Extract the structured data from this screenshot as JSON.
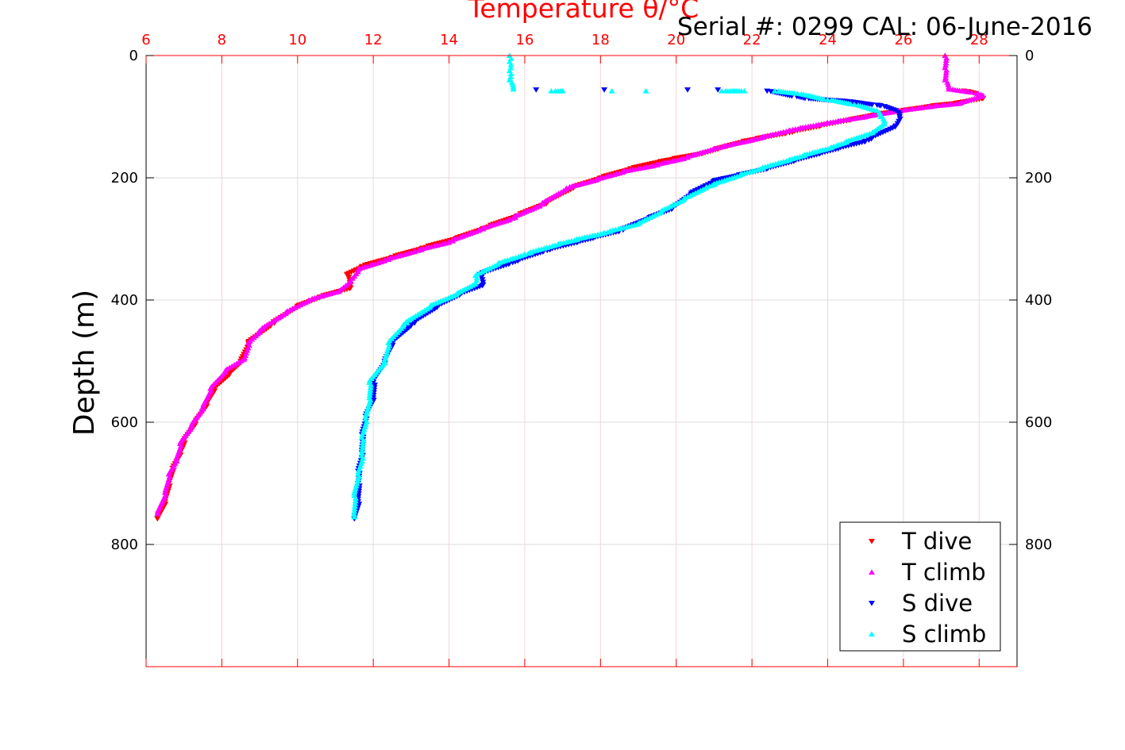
{
  "chart_data": {
    "type": "scatter",
    "title": "Serial #: 0299 CAL: 06-June-2016",
    "xlabel": "Temperature θ/°C",
    "ylabel": "Depth (m)",
    "xlim": [
      6,
      29
    ],
    "ylim": [
      0,
      1000
    ],
    "y_reversed": true,
    "grid": true,
    "x_axis_position": "top",
    "x_ticks": [
      6,
      8,
      10,
      12,
      14,
      16,
      18,
      20,
      22,
      24,
      26,
      28
    ],
    "y_ticks": [
      0,
      200,
      400,
      600,
      800
    ],
    "legend_position": "bottom-right",
    "colors": {
      "axis_top": "#ff0000",
      "axis_y": "#000000"
    },
    "series": [
      {
        "name": "T dive",
        "color": "#ff0000",
        "marker": "triangle-down",
        "points": [
          [
            27.6,
            58
          ],
          [
            27.9,
            62
          ],
          [
            28.0,
            66
          ],
          [
            28.1,
            70
          ],
          [
            27.4,
            78
          ],
          [
            26.8,
            82
          ],
          [
            26.0,
            90
          ],
          [
            25.3,
            96
          ],
          [
            24.6,
            105
          ],
          [
            23.8,
            115
          ],
          [
            22.9,
            127
          ],
          [
            21.8,
            140
          ],
          [
            20.7,
            160
          ],
          [
            19.6,
            173
          ],
          [
            18.8,
            185
          ],
          [
            18.0,
            200
          ],
          [
            17.3,
            215
          ],
          [
            16.6,
            240
          ],
          [
            15.8,
            262
          ],
          [
            14.9,
            283
          ],
          [
            14.2,
            299
          ],
          [
            13.3,
            315
          ],
          [
            12.5,
            330
          ],
          [
            11.7,
            345
          ],
          [
            11.3,
            358
          ],
          [
            11.4,
            380
          ],
          [
            10.6,
            395
          ],
          [
            10.0,
            410
          ],
          [
            9.3,
            440
          ],
          [
            8.7,
            470
          ],
          [
            8.5,
            500
          ],
          [
            8.2,
            520
          ],
          [
            7.8,
            545
          ],
          [
            7.6,
            570
          ],
          [
            7.3,
            600
          ],
          [
            7.0,
            630
          ],
          [
            6.9,
            650
          ],
          [
            6.7,
            675
          ],
          [
            6.6,
            700
          ],
          [
            6.5,
            730
          ],
          [
            6.3,
            758
          ]
        ]
      },
      {
        "name": "T climb",
        "color": "#ff00ff",
        "marker": "triangle-up",
        "points": [
          [
            27.1,
            0
          ],
          [
            27.1,
            20
          ],
          [
            27.1,
            40
          ],
          [
            27.2,
            55
          ],
          [
            27.8,
            60
          ],
          [
            28.1,
            65
          ],
          [
            27.5,
            78
          ],
          [
            26.5,
            85
          ],
          [
            25.7,
            92
          ],
          [
            25.0,
            100
          ],
          [
            24.0,
            110
          ],
          [
            23.0,
            122
          ],
          [
            22.0,
            138
          ],
          [
            21.0,
            152
          ],
          [
            20.2,
            168
          ],
          [
            19.4,
            180
          ],
          [
            18.6,
            190
          ],
          [
            17.9,
            203
          ],
          [
            17.1,
            217
          ],
          [
            16.4,
            245
          ],
          [
            15.6,
            268
          ],
          [
            14.8,
            285
          ],
          [
            14.0,
            305
          ],
          [
            13.1,
            320
          ],
          [
            12.3,
            335
          ],
          [
            11.6,
            350
          ],
          [
            11.4,
            368
          ],
          [
            11.1,
            385
          ],
          [
            10.3,
            400
          ],
          [
            9.7,
            420
          ],
          [
            9.0,
            450
          ],
          [
            8.7,
            470
          ],
          [
            8.6,
            495
          ],
          [
            8.1,
            515
          ],
          [
            7.7,
            545
          ],
          [
            7.5,
            575
          ],
          [
            7.2,
            605
          ],
          [
            6.9,
            635
          ],
          [
            6.8,
            660
          ],
          [
            6.6,
            685
          ],
          [
            6.5,
            715
          ],
          [
            6.3,
            750
          ]
        ]
      },
      {
        "name": "S dive",
        "color": "#0000ff",
        "marker": "triangle-down",
        "points": [
          [
            16.3,
            56
          ],
          [
            18.1,
            56
          ],
          [
            20.3,
            56
          ],
          [
            21.1,
            56
          ],
          [
            22.4,
            58
          ],
          [
            23.4,
            70
          ],
          [
            24.5,
            75
          ],
          [
            25.4,
            82
          ],
          [
            25.8,
            90
          ],
          [
            25.9,
            100
          ],
          [
            25.8,
            115
          ],
          [
            25.0,
            140
          ],
          [
            23.8,
            160
          ],
          [
            22.4,
            185
          ],
          [
            21.0,
            205
          ],
          [
            20.4,
            225
          ],
          [
            19.9,
            250
          ],
          [
            19.3,
            265
          ],
          [
            18.5,
            287
          ],
          [
            17.4,
            305
          ],
          [
            16.5,
            320
          ],
          [
            15.6,
            340
          ],
          [
            14.8,
            358
          ],
          [
            14.9,
            375
          ],
          [
            14.3,
            390
          ],
          [
            13.7,
            410
          ],
          [
            13.0,
            440
          ],
          [
            12.5,
            470
          ],
          [
            12.3,
            500
          ],
          [
            12.0,
            535
          ],
          [
            12.0,
            560
          ],
          [
            11.8,
            590
          ],
          [
            11.7,
            620
          ],
          [
            11.7,
            650
          ],
          [
            11.6,
            680
          ],
          [
            11.6,
            700
          ],
          [
            11.6,
            730
          ],
          [
            11.5,
            758
          ]
        ]
      },
      {
        "name": "S climb",
        "color": "#00ffff",
        "marker": "triangle-up",
        "points": [
          [
            15.6,
            0
          ],
          [
            15.6,
            10
          ],
          [
            15.6,
            25
          ],
          [
            15.6,
            40
          ],
          [
            15.7,
            55
          ],
          [
            16.7,
            58
          ],
          [
            17.0,
            58
          ],
          [
            18.3,
            58
          ],
          [
            19.2,
            58
          ],
          [
            21.2,
            58
          ],
          [
            21.8,
            58
          ],
          [
            22.6,
            58
          ],
          [
            23.2,
            62
          ],
          [
            24.0,
            72
          ],
          [
            24.7,
            80
          ],
          [
            25.3,
            90
          ],
          [
            25.4,
            100
          ],
          [
            25.5,
            110
          ],
          [
            25.2,
            125
          ],
          [
            24.1,
            150
          ],
          [
            23.0,
            170
          ],
          [
            21.7,
            195
          ],
          [
            20.8,
            215
          ],
          [
            20.2,
            235
          ],
          [
            19.6,
            255
          ],
          [
            19.0,
            275
          ],
          [
            18.1,
            290
          ],
          [
            16.9,
            308
          ],
          [
            16.0,
            325
          ],
          [
            15.3,
            340
          ],
          [
            14.7,
            360
          ],
          [
            14.7,
            372
          ],
          [
            14.2,
            390
          ],
          [
            13.5,
            410
          ],
          [
            12.8,
            440
          ],
          [
            12.4,
            470
          ],
          [
            12.3,
            500
          ],
          [
            11.9,
            535
          ],
          [
            11.9,
            560
          ],
          [
            11.8,
            595
          ],
          [
            11.7,
            625
          ],
          [
            11.7,
            655
          ],
          [
            11.6,
            685
          ],
          [
            11.5,
            720
          ],
          [
            11.5,
            755
          ]
        ]
      }
    ]
  }
}
